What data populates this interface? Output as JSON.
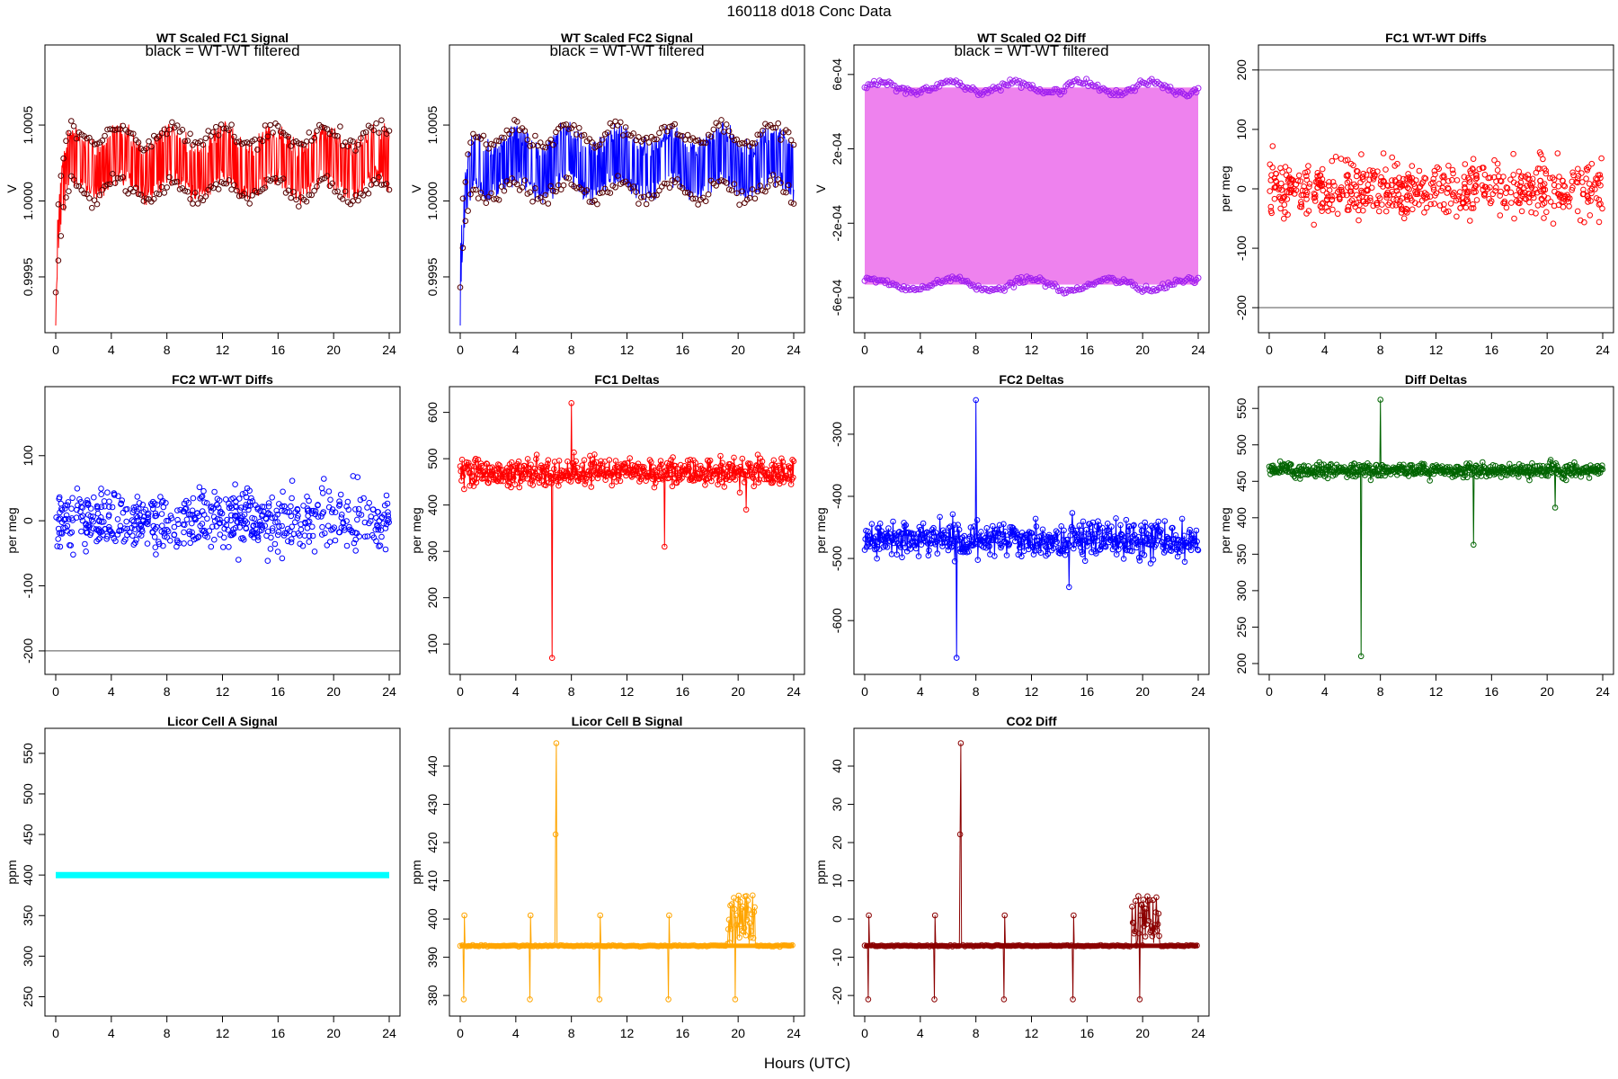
{
  "figure": {
    "title": "160118   d018   Conc Data",
    "xlabel": "Hours (UTC)",
    "note": "black = WT-WT filtered"
  },
  "chart_data": [
    {
      "id": "p1",
      "type": "line",
      "title": "WT Scaled FC1 Signal",
      "ylabel": "V",
      "xlim": [
        0,
        24
      ],
      "ylim": [
        0.99918,
        1.00098
      ],
      "xticks": [
        0,
        4,
        8,
        12,
        16,
        20,
        24
      ],
      "xtick_labels": [
        "0",
        "4",
        "8",
        "12",
        "16",
        "20",
        "24"
      ],
      "yticks": [
        0.9995,
        1.0,
        1.0005
      ],
      "ytick_labels": [
        "0.9995",
        "1.0000",
        "1.0005"
      ],
      "color": "#ff0000",
      "note": "black = WT-WT filtered",
      "series": [
        {
          "name": "FC1 signal",
          "start": 0.9992,
          "settle": 1.00025,
          "amplitude": 0.0002
        }
      ]
    },
    {
      "id": "p2",
      "type": "line",
      "title": "WT Scaled FC2 Signal",
      "ylabel": "V",
      "xlim": [
        0,
        24
      ],
      "ylim": [
        0.99918,
        1.00098
      ],
      "xticks": [
        0,
        4,
        8,
        12,
        16,
        20,
        24
      ],
      "xtick_labels": [
        "0",
        "4",
        "8",
        "12",
        "16",
        "20",
        "24"
      ],
      "yticks": [
        0.9995,
        1.0,
        1.0005
      ],
      "ytick_labels": [
        "0.9995",
        "1.0000",
        "1.0005"
      ],
      "color": "#0000ff",
      "note": "black = WT-WT filtered",
      "series": [
        {
          "name": "FC2 signal",
          "start": 0.9992,
          "settle": 1.00025,
          "amplitude": 0.0002
        }
      ]
    },
    {
      "id": "p3",
      "type": "line",
      "title": "WT Scaled O2 Diff",
      "ylabel": "V",
      "xlim": [
        0,
        24
      ],
      "ylim": [
        -0.00075,
        0.00072
      ],
      "xticks": [
        0,
        4,
        8,
        12,
        16,
        20,
        24
      ],
      "xtick_labels": [
        "0",
        "4",
        "8",
        "12",
        "16",
        "20",
        "24"
      ],
      "yticks": [
        -0.0006,
        -0.0002,
        0.0002,
        0.0006
      ],
      "ytick_labels": [
        "-6e-04",
        "-2e-04",
        "2e-04",
        "6e-04"
      ],
      "color": "#ee82ee",
      "point_color": "#a020f0",
      "note": "black = WT-WT filtered",
      "series": [
        {
          "name": "upper band",
          "level": 0.00053
        },
        {
          "name": "lower band",
          "level": -0.00053
        }
      ]
    },
    {
      "id": "p4",
      "type": "scatter",
      "title": "FC1 WT-WT Diffs",
      "ylabel": "per meg",
      "xlim": [
        0,
        24
      ],
      "ylim": [
        -230,
        230
      ],
      "xticks": [
        0,
        4,
        8,
        12,
        16,
        20,
        24
      ],
      "xtick_labels": [
        "0",
        "4",
        "8",
        "12",
        "16",
        "20",
        "24"
      ],
      "yticks": [
        -200,
        -100,
        0,
        100,
        200
      ],
      "ytick_labels": [
        "-200",
        "-100",
        "0",
        "100",
        "200"
      ],
      "color": "#ff0000",
      "hlines": [
        200,
        -200
      ],
      "series": [
        {
          "name": "FC1 WT-WT",
          "center": 0,
          "spread": 40,
          "count": 600
        }
      ]
    },
    {
      "id": "p5",
      "type": "scatter",
      "title": "FC2 WT-WT Diffs",
      "ylabel": "per meg",
      "xlim": [
        0,
        24
      ],
      "ylim": [
        -225,
        195
      ],
      "xticks": [
        0,
        4,
        8,
        12,
        16,
        20,
        24
      ],
      "xtick_labels": [
        "0",
        "4",
        "8",
        "12",
        "16",
        "20",
        "24"
      ],
      "yticks": [
        -200,
        -100,
        0,
        100
      ],
      "ytick_labels": [
        "-200",
        "-100",
        "0",
        "100"
      ],
      "color": "#0000ff",
      "hlines": [
        -200
      ],
      "series": [
        {
          "name": "FC2 WT-WT",
          "center": 0,
          "spread": 40,
          "count": 600
        }
      ]
    },
    {
      "id": "p6",
      "type": "line",
      "title": "FC1 Deltas",
      "ylabel": "per meg",
      "xlim": [
        0,
        24
      ],
      "ylim": [
        50,
        640
      ],
      "xticks": [
        0,
        4,
        8,
        12,
        16,
        20,
        24
      ],
      "xtick_labels": [
        "0",
        "4",
        "8",
        "12",
        "16",
        "20",
        "24"
      ],
      "yticks": [
        100,
        200,
        300,
        400,
        500,
        600
      ],
      "ytick_labels": [
        "100",
        "200",
        "300",
        "400",
        "500",
        "600"
      ],
      "color": "#ff0000",
      "series": [
        {
          "name": "FC1 delta",
          "baseline": 470,
          "noise": 25,
          "min": 70,
          "max": 620
        }
      ]
    },
    {
      "id": "p7",
      "type": "line",
      "title": "FC2 Deltas",
      "ylabel": "per meg",
      "xlim": [
        0,
        24
      ],
      "ylim": [
        -675,
        -235
      ],
      "xticks": [
        0,
        4,
        8,
        12,
        16,
        20,
        24
      ],
      "xtick_labels": [
        "0",
        "4",
        "8",
        "12",
        "16",
        "20",
        "24"
      ],
      "yticks": [
        -600,
        -500,
        -400,
        -300
      ],
      "ytick_labels": [
        "-600",
        "-500",
        "-400",
        "-300"
      ],
      "color": "#0000ff",
      "series": [
        {
          "name": "FC2 delta",
          "baseline": -470,
          "noise": 25,
          "min": -660,
          "max": -245
        }
      ]
    },
    {
      "id": "p8",
      "type": "line",
      "title": "Diff Deltas",
      "ylabel": "per meg",
      "xlim": [
        0,
        24
      ],
      "ylim": [
        195,
        570
      ],
      "xticks": [
        0,
        4,
        8,
        12,
        16,
        20,
        24
      ],
      "xtick_labels": [
        "0",
        "4",
        "8",
        "12",
        "16",
        "20",
        "24"
      ],
      "yticks": [
        200,
        250,
        300,
        350,
        400,
        450,
        500,
        550
      ],
      "ytick_labels": [
        "200",
        "250",
        "300",
        "350",
        "400",
        "450",
        "500",
        "550"
      ],
      "color": "#006400",
      "series": [
        {
          "name": "Diff delta",
          "baseline": 465,
          "noise": 8,
          "min": 210,
          "max": 562
        }
      ]
    },
    {
      "id": "p9",
      "type": "line",
      "title": "Licor Cell A Signal",
      "ylabel": "ppm",
      "xlim": [
        0,
        24
      ],
      "ylim": [
        235,
        572
      ],
      "xticks": [
        0,
        4,
        8,
        12,
        16,
        20,
        24
      ],
      "xtick_labels": [
        "0",
        "4",
        "8",
        "12",
        "16",
        "20",
        "24"
      ],
      "yticks": [
        250,
        300,
        350,
        400,
        450,
        500,
        550
      ],
      "ytick_labels": [
        "250",
        "300",
        "350",
        "400",
        "450",
        "500",
        "550"
      ],
      "color": "#00ffff",
      "series": [
        {
          "name": "Cell A",
          "constant": 400
        }
      ]
    },
    {
      "id": "p10",
      "type": "line",
      "title": "Licor Cell B Signal",
      "ylabel": "ppm",
      "xlim": [
        0,
        24
      ],
      "ylim": [
        376.5,
        448
      ],
      "xticks": [
        0,
        4,
        8,
        12,
        16,
        20,
        24
      ],
      "xtick_labels": [
        "0",
        "4",
        "8",
        "12",
        "16",
        "20",
        "24"
      ],
      "yticks": [
        380,
        390,
        400,
        410,
        420,
        430,
        440
      ],
      "ytick_labels": [
        "380",
        "390",
        "400",
        "410",
        "420",
        "430",
        "440"
      ],
      "color": "#ffa500",
      "series": [
        {
          "name": "Cell B",
          "baseline": 393,
          "min": 379,
          "max": 446
        }
      ]
    },
    {
      "id": "p11",
      "type": "line",
      "title": "CO2 Diff",
      "ylabel": "ppm",
      "xlim": [
        0,
        24
      ],
      "ylim": [
        -23.5,
        48
      ],
      "xticks": [
        0,
        4,
        8,
        12,
        16,
        20,
        24
      ],
      "xtick_labels": [
        "0",
        "4",
        "8",
        "12",
        "16",
        "20",
        "24"
      ],
      "yticks": [
        -20,
        -10,
        0,
        10,
        20,
        30,
        40
      ],
      "ytick_labels": [
        "-20",
        "-10",
        "0",
        "10",
        "20",
        "30",
        "40"
      ],
      "color": "#8b0000",
      "series": [
        {
          "name": "CO2 diff",
          "baseline": -7,
          "min": -21,
          "max": 46
        }
      ]
    }
  ]
}
